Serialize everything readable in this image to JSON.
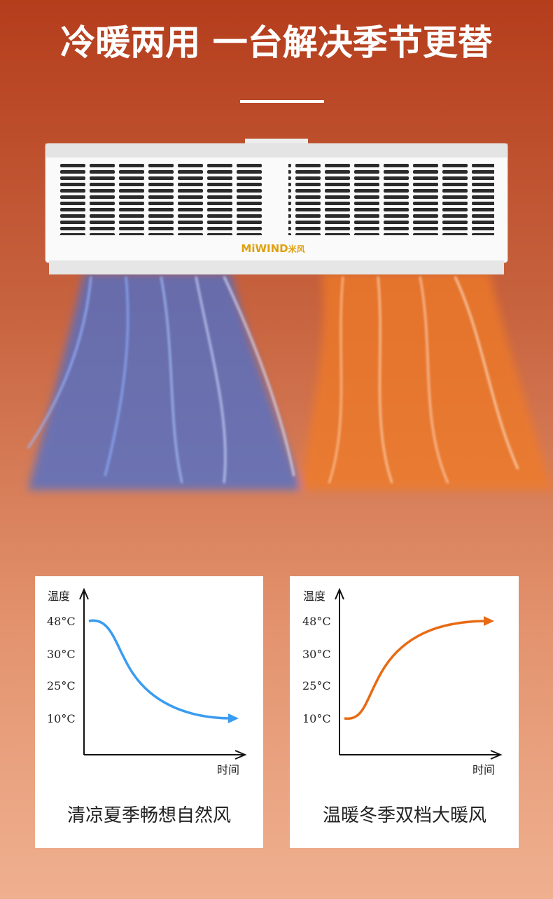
{
  "header": {
    "title": "冷暖两用 一台解决季节更替"
  },
  "product": {
    "brand": "MiWIND",
    "brand_cn": "米风"
  },
  "cards": [
    {
      "y_label": "温度",
      "ticks": [
        "48°C",
        "30°C",
        "25°C",
        "10°C"
      ],
      "x_label": "时间",
      "caption": "清凉夏季畅想自然风"
    },
    {
      "y_label": "温度",
      "ticks": [
        "48°C",
        "30°C",
        "25°C",
        "10°C"
      ],
      "x_label": "时间",
      "caption": "温暖冬季双档大暖风"
    }
  ]
}
